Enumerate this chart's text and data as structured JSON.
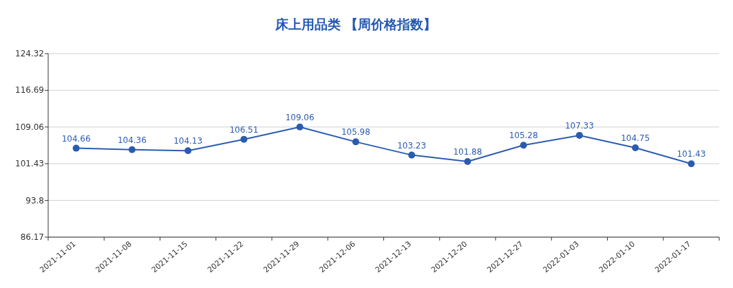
{
  "chart_data": {
    "type": "line",
    "title": "床上用品类 【周价格指数】",
    "categories": [
      "2021-11-01",
      "2021-11-08",
      "2021-11-15",
      "2021-11-22",
      "2021-11-29",
      "2021-12-06",
      "2021-12-13",
      "2021-12-20",
      "2021-12-27",
      "2022-01-03",
      "2022-01-10",
      "2022-01-17"
    ],
    "series": [
      {
        "color": "#2a5bb0",
        "values": [
          104.66,
          104.36,
          104.13,
          106.51,
          109.06,
          105.98,
          103.23,
          101.88,
          105.28,
          107.33,
          104.75,
          101.43
        ]
      }
    ],
    "ylim": [
      86.17,
      124.32
    ],
    "yticks": [
      86.17,
      93.8,
      101.43,
      109.06,
      116.69,
      124.32
    ],
    "grid": "y",
    "marker": "circle",
    "line_style": "solid",
    "data_labels": true
  }
}
